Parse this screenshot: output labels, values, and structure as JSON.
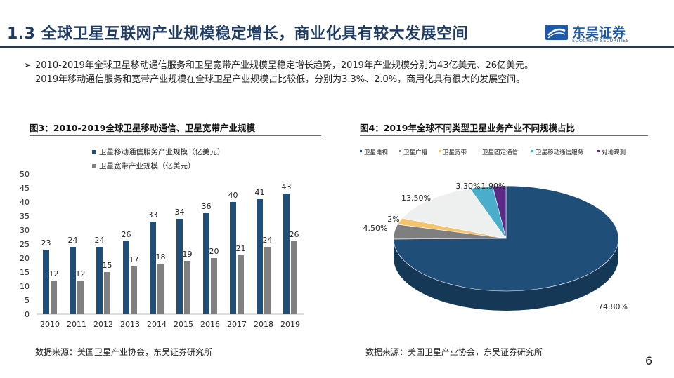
{
  "header": {
    "title": "1.3 全球卫星互联网产业规模稳定增长，商业化具有较大发展空间",
    "logo_text": "东吴证券",
    "logo_sub": "SOOCHOW SECURITIES",
    "brand_color": "#1f5aa8"
  },
  "summary": {
    "arrow": "➢",
    "line1": "2010-2019年全球卫星移动通信服务和卫星宽带产业规模呈稳定增长趋势，2019年产业规模分别为43亿美元、26亿美元。",
    "line2": "2019年移动通信服务和宽带产业规模在全球卫星产业规模占比较低，分别为3.3%、2.0%，商用化具有很大的发展空间。"
  },
  "figures": {
    "left_title": "图3：2010-2019全球卫星移动通信、卫星宽带产业规模",
    "right_title": "图4：2019年全球不同类型卫星业务产业不同规模占比",
    "left_source": "数据来源：美国卫星产业协会，东吴证券研究所",
    "right_source": "数据来源：美国卫星产业协会，东吴证券研究所"
  },
  "page_number": "6",
  "chart_data": [
    {
      "type": "bar",
      "title": "图3：2010-2019全球卫星移动通信、卫星宽带产业规模",
      "categories": [
        "2010",
        "2011",
        "2012",
        "2013",
        "2014",
        "2015",
        "2016",
        "2017",
        "2018",
        "2019"
      ],
      "series": [
        {
          "name": "卫星移动通信服务产业规模（亿美元）",
          "values": [
            23,
            24,
            24,
            26,
            33,
            34,
            36,
            40,
            41,
            43
          ],
          "color": "#1f4e79"
        },
        {
          "name": "卫星宽带产业规模（亿美元）",
          "values": [
            12,
            12,
            15,
            17,
            18,
            19,
            20,
            21,
            24,
            26
          ],
          "color": "#808080"
        }
      ],
      "ylim": [
        0,
        50
      ],
      "yticks": [
        "0",
        "5",
        "10",
        "15",
        "20",
        "25",
        "30",
        "35",
        "40",
        "45",
        "50"
      ],
      "grid": false,
      "legend": "top-left"
    },
    {
      "type": "pie",
      "title": "图4：2019年全球不同类型卫星业务产业不同规模占比",
      "labels": [
        "卫星电视",
        "卫星广播",
        "卫星宽带",
        "卫星固定通信",
        "卫星移动通信服务",
        "对地观测"
      ],
      "values": [
        74.8,
        4.5,
        2.0,
        13.5,
        3.3,
        1.9
      ],
      "value_labels": [
        "74.80%",
        "4.50%",
        "2%",
        "13.50%",
        "3.30%",
        "1.90%"
      ],
      "colors": [
        "#1f4e79",
        "#7f7f7f",
        "#f2c46d",
        "#eef0f0",
        "#4aaecb",
        "#5b2a86"
      ],
      "legend": "top",
      "style": "3d"
    }
  ]
}
